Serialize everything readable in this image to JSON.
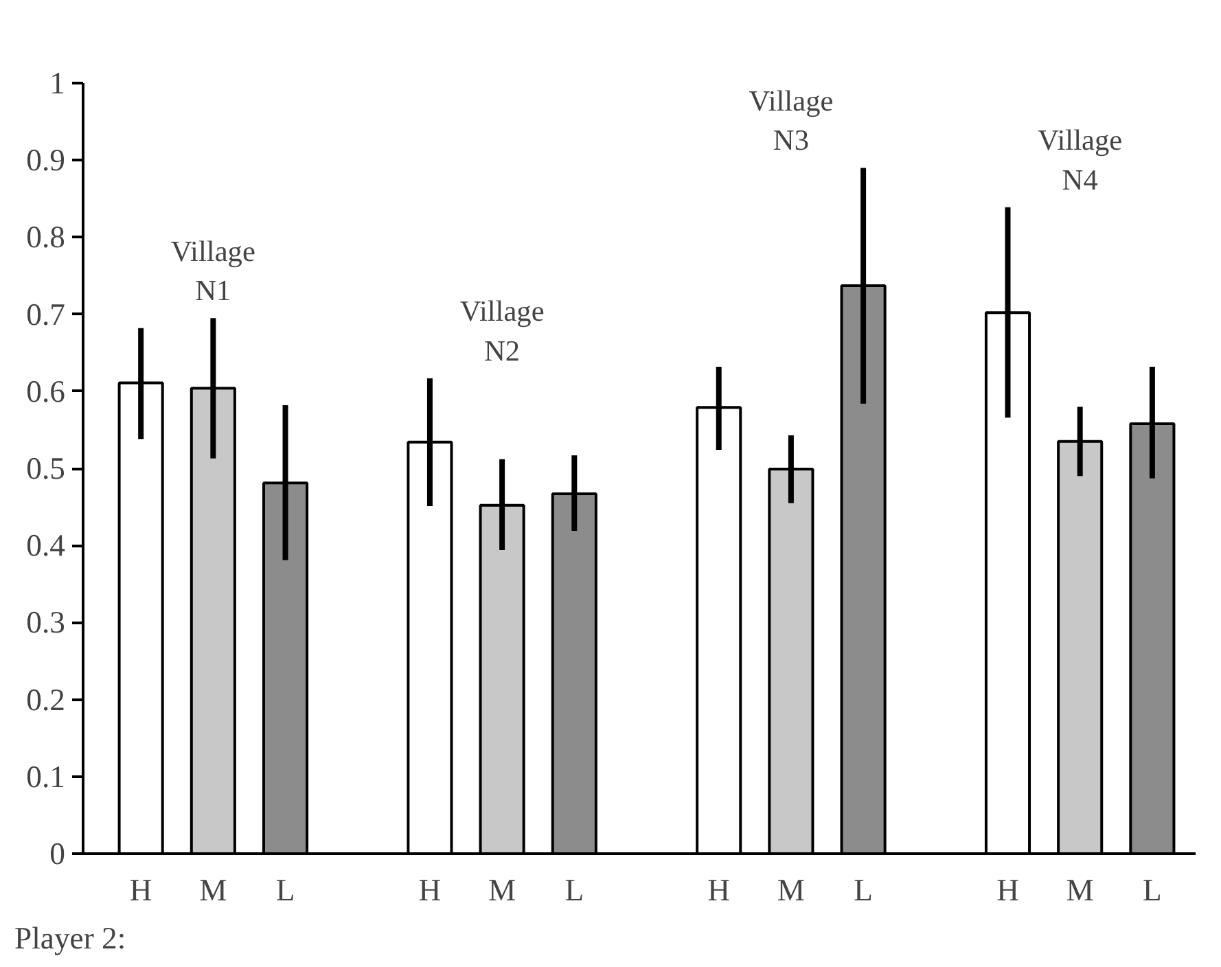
{
  "chart_data": {
    "type": "bar",
    "categories": [
      "H",
      "M",
      "L",
      null,
      "H",
      "M",
      "L",
      null,
      "H",
      "M",
      "L",
      null,
      "H",
      "M",
      "L"
    ],
    "values": [
      0.611,
      0.604,
      0.481,
      null,
      0.534,
      0.452,
      0.467,
      null,
      0.579,
      0.499,
      0.737,
      null,
      0.702,
      0.535,
      0.558
    ],
    "errors": [
      [
        0.538,
        0.682
      ],
      [
        0.513,
        0.695
      ],
      [
        0.381,
        0.582
      ],
      null,
      [
        0.451,
        0.617
      ],
      [
        0.394,
        0.512
      ],
      [
        0.419,
        0.517
      ],
      null,
      [
        0.524,
        0.632
      ],
      [
        0.455,
        0.543
      ],
      [
        0.584,
        0.89
      ],
      null,
      [
        0.566,
        0.839
      ],
      [
        0.49,
        0.58
      ],
      [
        0.487,
        0.632
      ]
    ],
    "colors": [
      "#ffffff",
      "#c8c8c8",
      "#8c8c8c",
      null,
      "#ffffff",
      "#c8c8c8",
      "#8c8c8c",
      null,
      "#ffffff",
      "#c8c8c8",
      "#8c8c8c",
      null,
      "#ffffff",
      "#c8c8c8",
      "#8c8c8c"
    ],
    "xlabel": "Player 2:",
    "annotations": [
      "Village\nN1",
      "Village\nN2",
      "Village\nN3",
      "Village\nN4"
    ],
    "ylim": [
      0,
      1
    ],
    "yticks": [
      0,
      0.1,
      0.2,
      0.3,
      0.4,
      0.5,
      0.6,
      0.7,
      0.8,
      0.9,
      1
    ],
    "grid": false
  }
}
